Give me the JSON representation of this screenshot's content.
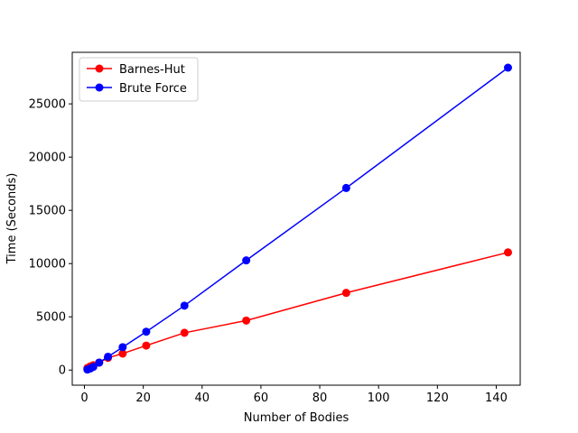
{
  "chart_data": {
    "type": "line",
    "title": "",
    "xlabel": "Number of Bodies",
    "ylabel": "Time (Seconds)",
    "xlim": [
      -4.15,
      148.15
    ],
    "ylim": [
      -1420,
      29840
    ],
    "x_ticks": [
      0,
      20,
      40,
      60,
      80,
      100,
      120,
      140
    ],
    "y_ticks": [
      0,
      5000,
      10000,
      15000,
      20000,
      25000
    ],
    "grid": false,
    "legend_position": "top-left",
    "series": [
      {
        "name": "Barnes-Hut",
        "color": "#ff0000",
        "marker": "circle",
        "x": [
          1,
          2,
          3,
          5,
          8,
          13,
          21,
          34,
          55,
          89,
          144
        ],
        "y": [
          200,
          350,
          450,
          700,
          1150,
          1550,
          2300,
          3500,
          4650,
          7250,
          11050
        ]
      },
      {
        "name": "Brute Force",
        "color": "#0000ff",
        "marker": "circle",
        "x": [
          1,
          2,
          3,
          5,
          8,
          13,
          21,
          34,
          55,
          89,
          144
        ],
        "y": [
          50,
          150,
          300,
          700,
          1250,
          2150,
          3600,
          6050,
          10300,
          17100,
          28400
        ]
      }
    ]
  }
}
